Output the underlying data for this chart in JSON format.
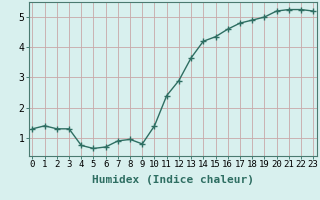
{
  "x": [
    0,
    1,
    2,
    3,
    4,
    5,
    6,
    7,
    8,
    9,
    10,
    11,
    12,
    13,
    14,
    15,
    16,
    17,
    18,
    19,
    20,
    21,
    22,
    23
  ],
  "y": [
    1.3,
    1.4,
    1.3,
    1.3,
    0.75,
    0.65,
    0.7,
    0.9,
    0.95,
    0.8,
    1.4,
    2.4,
    2.9,
    3.65,
    4.2,
    4.35,
    4.6,
    4.8,
    4.9,
    5.0,
    5.2,
    5.25,
    5.25,
    5.2
  ],
  "line_color": "#2e6e62",
  "marker": "+",
  "marker_size": 4,
  "linewidth": 1.0,
  "bg_color": "#d8f0ee",
  "grid_color": "#c8a8a8",
  "xlabel": "Humidex (Indice chaleur)",
  "xlabel_fontsize": 8,
  "xlabel_fontweight": "bold",
  "yticks": [
    1,
    2,
    3,
    4,
    5
  ],
  "xticks": [
    0,
    1,
    2,
    3,
    4,
    5,
    6,
    7,
    8,
    9,
    10,
    11,
    12,
    13,
    14,
    15,
    16,
    17,
    18,
    19,
    20,
    21,
    22,
    23
  ],
  "xlim": [
    -0.3,
    23.3
  ],
  "ylim": [
    0.4,
    5.5
  ],
  "tick_fontsize": 6.5,
  "spine_color": "#4a7a70",
  "tick_color": "#2e6e62"
}
